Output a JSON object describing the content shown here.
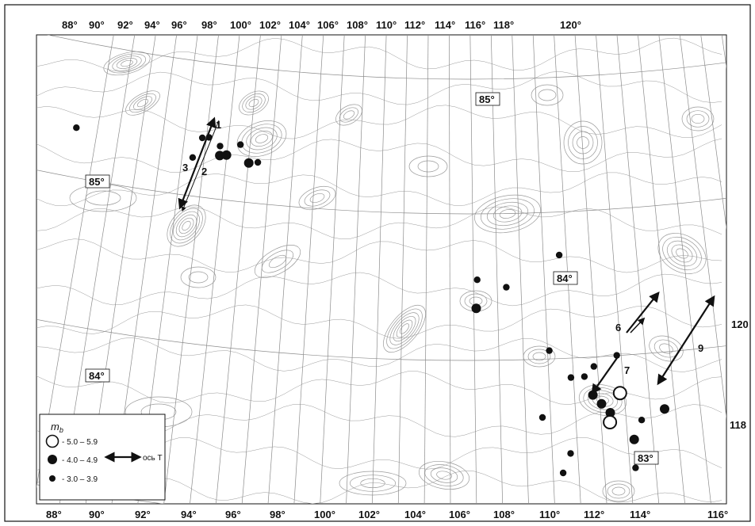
{
  "map": {
    "top_lon_ticks": [
      "88°",
      "90°",
      "92°",
      "94°",
      "96°",
      "98°",
      "100°",
      "102°",
      "104°",
      "106°",
      "108°",
      "110°",
      "112°",
      "114°",
      "116°",
      "118°",
      "120°"
    ],
    "bottom_lon_ticks": [
      "88°",
      "90°",
      "92°",
      "94°",
      "96°",
      "98°",
      "100°",
      "102°",
      "104°",
      "106°",
      "108°",
      "110°",
      "112°",
      "114°",
      "116°"
    ],
    "right_ticks": [
      "120",
      "118"
    ],
    "lat_labels": [
      "85°",
      "85°",
      "84°",
      "84°",
      "83°"
    ],
    "event_labels": [
      "1",
      "2",
      "3",
      "6",
      "7",
      "9"
    ],
    "events": [
      {
        "mb_class": "small",
        "lon": 87.9,
        "lat": 85.3
      },
      {
        "mb_class": "small",
        "lon": 93.5,
        "lat": 85.2
      },
      {
        "mb_class": "small",
        "lon": 93.8,
        "lat": 85.2
      },
      {
        "mb_class": "small",
        "lon": 94.3,
        "lat": 85.15
      },
      {
        "mb_class": "small",
        "lon": 93.1,
        "lat": 85.1
      },
      {
        "mb_class": "medium",
        "lon": 94.3,
        "lat": 85.1
      },
      {
        "mb_class": "medium",
        "lon": 94.6,
        "lat": 85.1
      },
      {
        "mb_class": "small",
        "lon": 95.2,
        "lat": 85.15
      },
      {
        "mb_class": "medium",
        "lon": 95.6,
        "lat": 85.05
      },
      {
        "mb_class": "small",
        "lon": 96.0,
        "lat": 85.05
      },
      {
        "mb_class": "small",
        "lon": 105.9,
        "lat": 84.35
      },
      {
        "mb_class": "small",
        "lon": 107.2,
        "lat": 84.3
      },
      {
        "mb_class": "small",
        "lon": 109.5,
        "lat": 84.45
      },
      {
        "mb_class": "medium",
        "lon": 105.9,
        "lat": 84.2
      },
      {
        "mb_class": "small",
        "lon": 109.2,
        "lat": 83.95
      },
      {
        "mb_class": "small",
        "lon": 111.2,
        "lat": 83.85
      },
      {
        "mb_class": "small",
        "lon": 112.2,
        "lat": 83.9
      },
      {
        "mb_class": "small",
        "lon": 110.2,
        "lat": 83.8
      },
      {
        "mb_class": "small",
        "lon": 110.8,
        "lat": 83.8
      },
      {
        "mb_class": "medium",
        "lon": 111.2,
        "lat": 83.7
      },
      {
        "mb_class": "medium",
        "lon": 111.6,
        "lat": 83.65
      },
      {
        "mb_class": "medium",
        "lon": 112.0,
        "lat": 83.6
      },
      {
        "mb_class": "large",
        "lon": 112.4,
        "lat": 83.7
      },
      {
        "mb_class": "large",
        "lon": 112.0,
        "lat": 83.55
      },
      {
        "mb_class": "small",
        "lon": 109.0,
        "lat": 83.6
      },
      {
        "mb_class": "small",
        "lon": 110.3,
        "lat": 83.4
      },
      {
        "mb_class": "medium",
        "lon": 113.1,
        "lat": 83.45
      },
      {
        "mb_class": "medium",
        "lon": 114.4,
        "lat": 83.6
      },
      {
        "mb_class": "small",
        "lon": 113.4,
        "lat": 83.55
      },
      {
        "mb_class": "small",
        "lon": 110.0,
        "lat": 83.3
      },
      {
        "mb_class": "small",
        "lon": 113.2,
        "lat": 83.3
      },
      {
        "mb_class": "small",
        "lon": 116.0,
        "lat": 82.9
      }
    ]
  },
  "legend": {
    "title": "m",
    "title_sub": "b",
    "items": [
      {
        "symbol": "open-circle",
        "label": "- 5.0 – 5.9"
      },
      {
        "symbol": "large-dot",
        "label": "- 4.0 – 4.9"
      },
      {
        "symbol": "small-dot",
        "label": "- 3.0 – 3.9"
      }
    ],
    "arrow_label": "ось T"
  },
  "colors": {
    "ink": "#111111",
    "grid": "#8c8c8c",
    "contour": "#9a9a9a",
    "background": "#ffffff"
  }
}
